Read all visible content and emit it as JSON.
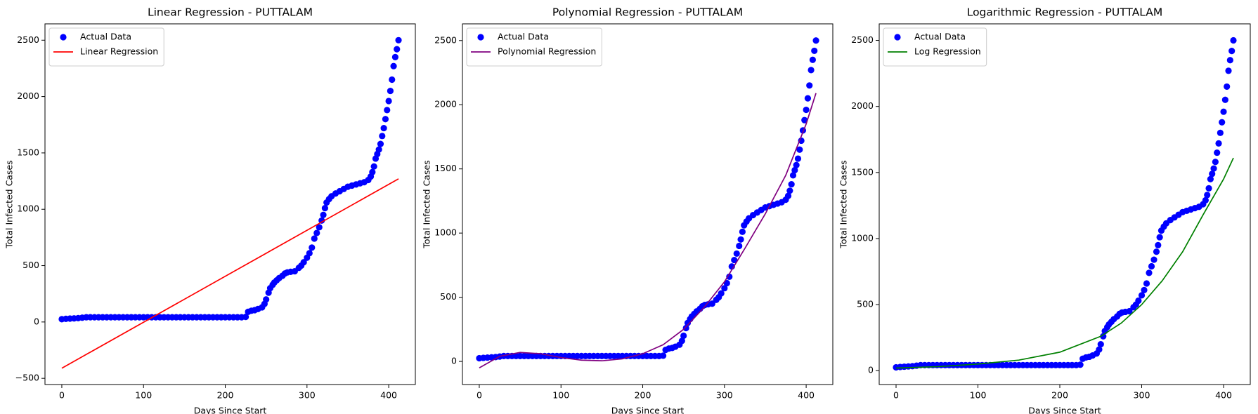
{
  "chart_data": [
    {
      "type": "scatter",
      "title": "Linear Regression - PUTTALAM",
      "x_label": "Days Since Start",
      "y_label": "Total Infected Cases",
      "xlim": [
        -20.6,
        432.6
      ],
      "xticks": [
        0,
        100,
        200,
        300,
        400
      ],
      "ylim": [
        -555,
        2645
      ],
      "yticks": [
        {
          "value": -500,
          "label": "−500"
        },
        0,
        500,
        1000,
        1500,
        2000,
        2500
      ],
      "legend": "upper left",
      "series": [
        {
          "name": "Actual Data",
          "type": "scatter",
          "color": "#0000ff",
          "x": [
            0,
            5,
            10,
            15,
            20,
            25,
            30,
            35,
            40,
            45,
            50,
            55,
            60,
            65,
            70,
            75,
            80,
            85,
            90,
            95,
            100,
            105,
            110,
            115,
            120,
            125,
            130,
            135,
            140,
            145,
            150,
            155,
            160,
            165,
            170,
            175,
            180,
            185,
            190,
            195,
            200,
            205,
            210,
            215,
            220,
            225,
            228,
            232,
            236,
            240,
            245,
            248,
            250,
            253,
            255,
            258,
            260,
            263,
            266,
            270,
            273,
            276,
            280,
            285,
            290,
            293,
            296,
            300,
            303,
            306,
            309,
            312,
            315,
            318,
            320,
            322,
            324,
            327,
            330,
            335,
            340,
            345,
            350,
            355,
            360,
            365,
            370,
            375,
            378,
            380,
            382,
            384,
            386,
            388,
            390,
            392,
            394,
            396,
            398,
            400,
            402,
            404,
            406,
            408,
            410,
            412
          ],
          "values": [
            25,
            28,
            30,
            32,
            34,
            38,
            42,
            42,
            42,
            42,
            42,
            42,
            42,
            42,
            42,
            42,
            42,
            42,
            42,
            42,
            42,
            42,
            42,
            42,
            42,
            42,
            42,
            42,
            42,
            42,
            42,
            42,
            42,
            42,
            42,
            42,
            42,
            42,
            42,
            42,
            42,
            42,
            42,
            42,
            42,
            45,
            90,
            100,
            105,
            115,
            130,
            160,
            200,
            260,
            300,
            330,
            350,
            370,
            390,
            410,
            430,
            440,
            445,
            450,
            480,
            500,
            530,
            570,
            610,
            660,
            740,
            790,
            840,
            900,
            950,
            1010,
            1060,
            1090,
            1115,
            1140,
            1160,
            1180,
            1200,
            1210,
            1220,
            1230,
            1240,
            1260,
            1290,
            1330,
            1380,
            1450,
            1490,
            1530,
            1580,
            1650,
            1720,
            1800,
            1880,
            1960,
            2050,
            2150,
            2270,
            2350,
            2420,
            2500
          ]
        },
        {
          "name": "Linear Regression",
          "type": "line",
          "color": "#ff0000",
          "x": [
            0,
            412
          ],
          "values": [
            -410,
            1270
          ]
        }
      ]
    },
    {
      "type": "scatter",
      "title": "Polynomial Regression - PUTTALAM",
      "x_label": "Days Since Start",
      "y_label": "Total Infected Cases",
      "xlim": [
        -20.6,
        432.6
      ],
      "xticks": [
        0,
        100,
        200,
        300,
        400
      ],
      "ylim": [
        -180,
        2630
      ],
      "yticks": [
        0,
        500,
        1000,
        1500,
        2000,
        2500
      ],
      "legend": "upper left",
      "series": [
        {
          "name": "Actual Data",
          "type": "scatter",
          "color": "#0000ff",
          "x": [
            0,
            5,
            10,
            15,
            20,
            25,
            30,
            35,
            40,
            45,
            50,
            55,
            60,
            65,
            70,
            75,
            80,
            85,
            90,
            95,
            100,
            105,
            110,
            115,
            120,
            125,
            130,
            135,
            140,
            145,
            150,
            155,
            160,
            165,
            170,
            175,
            180,
            185,
            190,
            195,
            200,
            205,
            210,
            215,
            220,
            225,
            228,
            232,
            236,
            240,
            245,
            248,
            250,
            253,
            255,
            258,
            260,
            263,
            266,
            270,
            273,
            276,
            280,
            285,
            290,
            293,
            296,
            300,
            303,
            306,
            309,
            312,
            315,
            318,
            320,
            322,
            324,
            327,
            330,
            335,
            340,
            345,
            350,
            355,
            360,
            365,
            370,
            375,
            378,
            380,
            382,
            384,
            386,
            388,
            390,
            392,
            394,
            396,
            398,
            400,
            402,
            404,
            406,
            408,
            410,
            412
          ],
          "values": [
            25,
            28,
            30,
            32,
            34,
            38,
            42,
            42,
            42,
            42,
            42,
            42,
            42,
            42,
            42,
            42,
            42,
            42,
            42,
            42,
            42,
            42,
            42,
            42,
            42,
            42,
            42,
            42,
            42,
            42,
            42,
            42,
            42,
            42,
            42,
            42,
            42,
            42,
            42,
            42,
            42,
            42,
            42,
            42,
            42,
            45,
            90,
            100,
            105,
            115,
            130,
            160,
            200,
            260,
            300,
            330,
            350,
            370,
            390,
            410,
            430,
            440,
            445,
            450,
            480,
            500,
            530,
            570,
            610,
            660,
            740,
            790,
            840,
            900,
            950,
            1010,
            1060,
            1090,
            1115,
            1140,
            1160,
            1180,
            1200,
            1210,
            1220,
            1230,
            1240,
            1260,
            1290,
            1330,
            1380,
            1450,
            1490,
            1530,
            1580,
            1650,
            1720,
            1800,
            1880,
            1960,
            2050,
            2150,
            2270,
            2350,
            2420,
            2500
          ]
        },
        {
          "name": "Polynomial Regression",
          "type": "line",
          "color": "#800080",
          "x": [
            0,
            25,
            50,
            75,
            100,
            125,
            150,
            175,
            200,
            225,
            250,
            275,
            300,
            325,
            350,
            375,
            400,
            412
          ],
          "values": [
            -50,
            40,
            70,
            60,
            30,
            10,
            5,
            20,
            60,
            130,
            250,
            420,
            620,
            880,
            1150,
            1450,
            1850,
            2090
          ]
        }
      ]
    },
    {
      "type": "scatter",
      "title": "Logarithmic Regression - PUTTALAM",
      "x_label": "Days Since Start",
      "y_label": "Total Infected Cases",
      "xlim": [
        -20.6,
        432.6
      ],
      "xticks": [
        0,
        100,
        200,
        300,
        400
      ],
      "ylim": [
        -105,
        2625
      ],
      "yticks": [
        0,
        500,
        1000,
        1500,
        2000,
        2500
      ],
      "legend": "upper left",
      "series": [
        {
          "name": "Actual Data",
          "type": "scatter",
          "color": "#0000ff",
          "x": [
            0,
            5,
            10,
            15,
            20,
            25,
            30,
            35,
            40,
            45,
            50,
            55,
            60,
            65,
            70,
            75,
            80,
            85,
            90,
            95,
            100,
            105,
            110,
            115,
            120,
            125,
            130,
            135,
            140,
            145,
            150,
            155,
            160,
            165,
            170,
            175,
            180,
            185,
            190,
            195,
            200,
            205,
            210,
            215,
            220,
            225,
            228,
            232,
            236,
            240,
            245,
            248,
            250,
            253,
            255,
            258,
            260,
            263,
            266,
            270,
            273,
            276,
            280,
            285,
            290,
            293,
            296,
            300,
            303,
            306,
            309,
            312,
            315,
            318,
            320,
            322,
            324,
            327,
            330,
            335,
            340,
            345,
            350,
            355,
            360,
            365,
            370,
            375,
            378,
            380,
            382,
            384,
            386,
            388,
            390,
            392,
            394,
            396,
            398,
            400,
            402,
            404,
            406,
            408,
            410,
            412
          ],
          "values": [
            25,
            28,
            30,
            32,
            34,
            38,
            42,
            42,
            42,
            42,
            42,
            42,
            42,
            42,
            42,
            42,
            42,
            42,
            42,
            42,
            42,
            42,
            42,
            42,
            42,
            42,
            42,
            42,
            42,
            42,
            42,
            42,
            42,
            42,
            42,
            42,
            42,
            42,
            42,
            42,
            42,
            42,
            42,
            42,
            42,
            45,
            90,
            100,
            105,
            115,
            130,
            160,
            200,
            260,
            300,
            330,
            350,
            370,
            390,
            410,
            430,
            440,
            445,
            450,
            480,
            500,
            530,
            570,
            610,
            660,
            740,
            790,
            840,
            900,
            950,
            1010,
            1060,
            1090,
            1115,
            1140,
            1160,
            1180,
            1200,
            1210,
            1220,
            1230,
            1240,
            1260,
            1290,
            1330,
            1380,
            1450,
            1490,
            1530,
            1580,
            1650,
            1720,
            1800,
            1880,
            1960,
            2050,
            2150,
            2270,
            2350,
            2420,
            2500
          ]
        },
        {
          "name": "Log Regression",
          "type": "line",
          "color": "#008000",
          "x": [
            0,
            50,
            100,
            150,
            200,
            250,
            275,
            300,
            325,
            350,
            375,
            400,
            412
          ],
          "values": [
            20,
            30,
            50,
            80,
            140,
            260,
            360,
            500,
            680,
            900,
            1180,
            1450,
            1610
          ]
        }
      ]
    }
  ]
}
